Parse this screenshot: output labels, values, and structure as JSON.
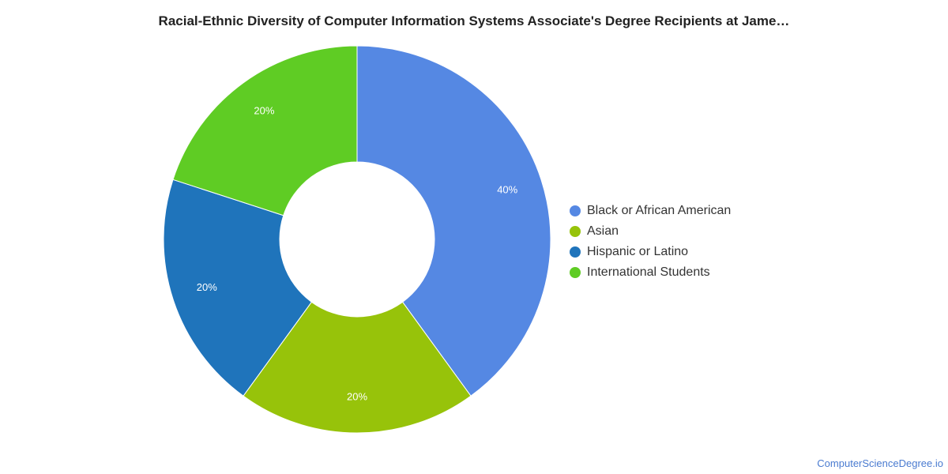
{
  "chart_data": {
    "type": "pie",
    "title": "Racial-Ethnic Diversity of Computer Information Systems Associate's Degree Recipients at Jame…",
    "categories": [
      "Black or African American",
      "Asian",
      "Hispanic or Latino",
      "International Students"
    ],
    "values": [
      40,
      20,
      20,
      20
    ],
    "data_labels": [
      "40%",
      "20%",
      "20%",
      "20%"
    ],
    "colors": [
      "#5588e3",
      "#97c30a",
      "#1f74bb",
      "#5fcc24"
    ],
    "legend_position": "right",
    "donut": true
  },
  "footer": {
    "credit": "ComputerScienceDegree.io"
  }
}
